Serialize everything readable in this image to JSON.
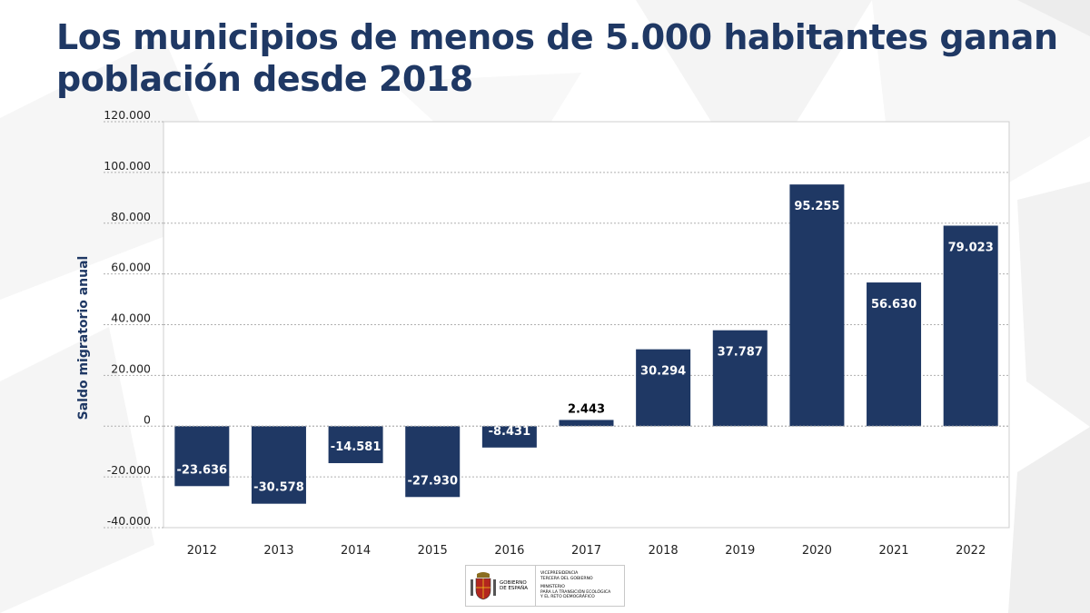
{
  "title": "Los municipios de menos de 5.000 habitantes ganan población desde 2018",
  "footer": {
    "gov_line1": "GOBIERNO",
    "gov_line2": "DE ESPAÑA",
    "vice_line1": "VICEPRESIDENCIA",
    "vice_line2": "TERCERA DEL GOBIERNO",
    "min_line1": "MINISTERIO",
    "min_line2": "PARA LA TRANSICIÓN ECOLÓGICA",
    "min_line3": "Y EL RETO DEMOGRÁFICO"
  },
  "colors": {
    "title": "#1f3864",
    "bar": "#1f3864",
    "bar_label_light": "#ffffff",
    "bar_label_dark": "#000000",
    "grid": "#b0b0b0",
    "plot_border": "#cfcfcf",
    "tick_text": "#222222"
  },
  "chart_data": {
    "type": "bar",
    "title": "Los municipios de menos de 5.000 habitantes ganan población desde 2018",
    "xlabel": "",
    "ylabel": "Saldo migratorio anual",
    "categories": [
      "2012",
      "2013",
      "2014",
      "2015",
      "2016",
      "2017",
      "2018",
      "2019",
      "2020",
      "2021",
      "2022"
    ],
    "values": [
      -23636,
      -30578,
      -14581,
      -27930,
      -8431,
      2443,
      30294,
      37787,
      95255,
      56630,
      79023
    ],
    "value_labels": [
      "-23.636",
      "-30.578",
      "-14.581",
      "-27.930",
      "-8.431",
      "2.443",
      "30.294",
      "37.787",
      "95.255",
      "56.630",
      "79.023"
    ],
    "ylim": [
      -40000,
      120000
    ],
    "yticks": [
      120000,
      100000,
      80000,
      60000,
      40000,
      20000,
      0,
      -20000,
      -40000
    ],
    "ytick_labels": [
      "120.000",
      "100.000",
      "80.000",
      "60.000",
      "40.000",
      "20.000",
      "0",
      "-20.000",
      "-40.000"
    ],
    "grid": true,
    "legend": "none"
  }
}
